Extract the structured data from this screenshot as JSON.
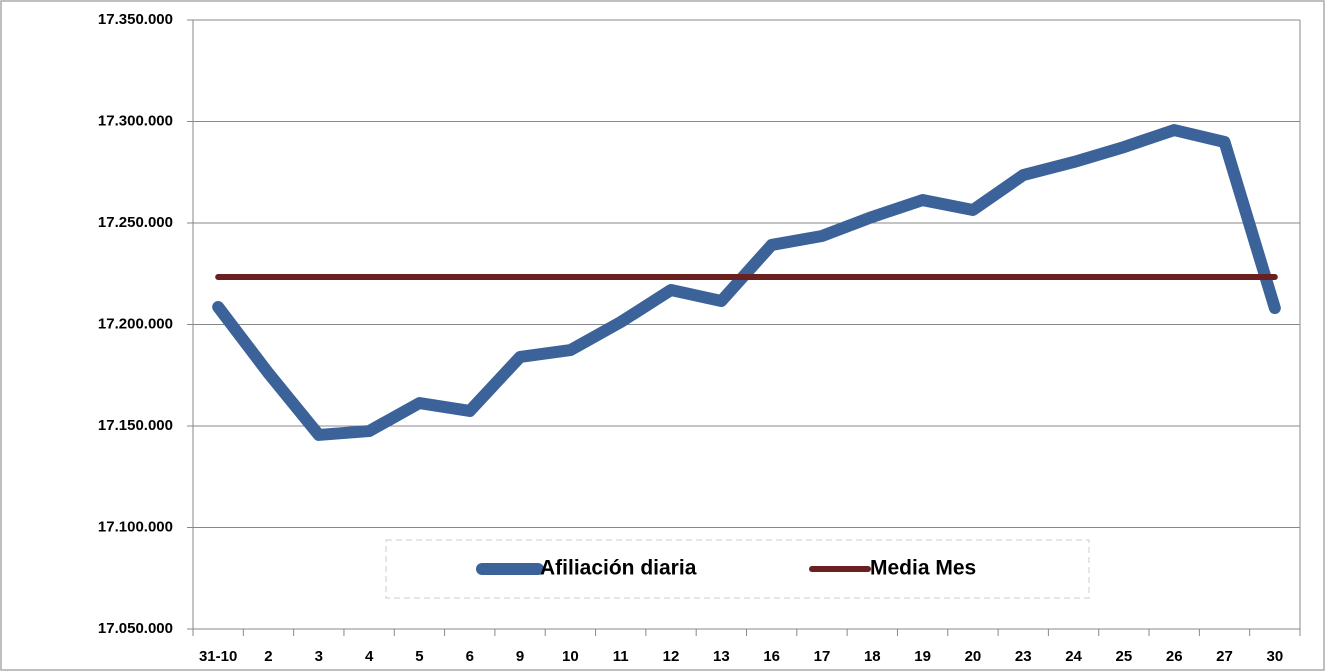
{
  "chart_data": {
    "type": "line",
    "categories": [
      "31-10",
      "2",
      "3",
      "4",
      "5",
      "6",
      "9",
      "10",
      "11",
      "12",
      "13",
      "16",
      "17",
      "18",
      "19",
      "20",
      "23",
      "24",
      "25",
      "26",
      "27",
      "30"
    ],
    "series": [
      {
        "name": "Afiliación diaria",
        "color": "#3c6399",
        "values": [
          17208600,
          17176000,
          17145600,
          17147500,
          17161300,
          17157400,
          17184000,
          17187400,
          17201200,
          17217000,
          17211600,
          17239200,
          17243600,
          17253000,
          17261300,
          17256400,
          17273600,
          17280000,
          17287400,
          17295800,
          17289900,
          17208100
        ]
      },
      {
        "name": "Media Mes",
        "color": "#6b2020",
        "values": [
          17223400,
          17223400,
          17223400,
          17223400,
          17223400,
          17223400,
          17223400,
          17223400,
          17223400,
          17223400,
          17223400,
          17223400,
          17223400,
          17223400,
          17223400,
          17223400,
          17223400,
          17223400,
          17223400,
          17223400,
          17223400,
          17223400
        ]
      }
    ],
    "ylim": [
      17050000,
      17350000
    ],
    "yticks": [
      {
        "value": 17050000,
        "label": "17.050.000"
      },
      {
        "value": 17100000,
        "label": "17.100.000"
      },
      {
        "value": 17150000,
        "label": "17.150.000"
      },
      {
        "value": 17200000,
        "label": "17.200.000"
      },
      {
        "value": 17250000,
        "label": "17.250.000"
      },
      {
        "value": 17300000,
        "label": "17.300.000"
      },
      {
        "value": 17350000,
        "label": "17.350.000"
      }
    ],
    "grid": true
  }
}
